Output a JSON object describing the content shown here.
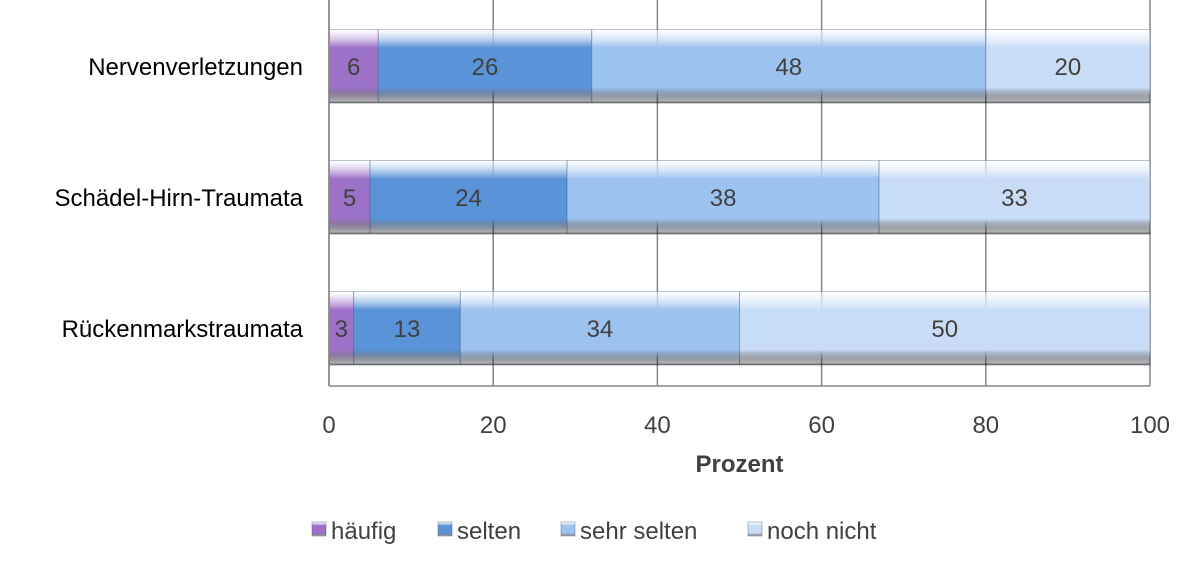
{
  "chart_data": {
    "type": "bar",
    "orientation": "horizontal",
    "stacked": true,
    "categories": [
      "Nervenverletzungen",
      "Schädel-Hirn-Traumata",
      "Rückenmarkstraumata"
    ],
    "series": [
      {
        "name": "häufig",
        "values": [
          6,
          5,
          3
        ],
        "color": "#9c72c8"
      },
      {
        "name": "selten",
        "values": [
          26,
          24,
          13
        ],
        "color": "#5b93d8"
      },
      {
        "name": "sehr selten",
        "values": [
          48,
          38,
          34
        ],
        "color": "#9cc2f0"
      },
      {
        "name": "noch nicht",
        "values": [
          20,
          33,
          50
        ],
        "color": "#c8dcf6"
      }
    ],
    "xlabel": "Prozent",
    "ylabel": "",
    "xlim": [
      0,
      100
    ],
    "xticks": [
      "0",
      "20",
      "40",
      "60",
      "80",
      "100"
    ],
    "grid": "vertical",
    "legend": "bottom"
  }
}
